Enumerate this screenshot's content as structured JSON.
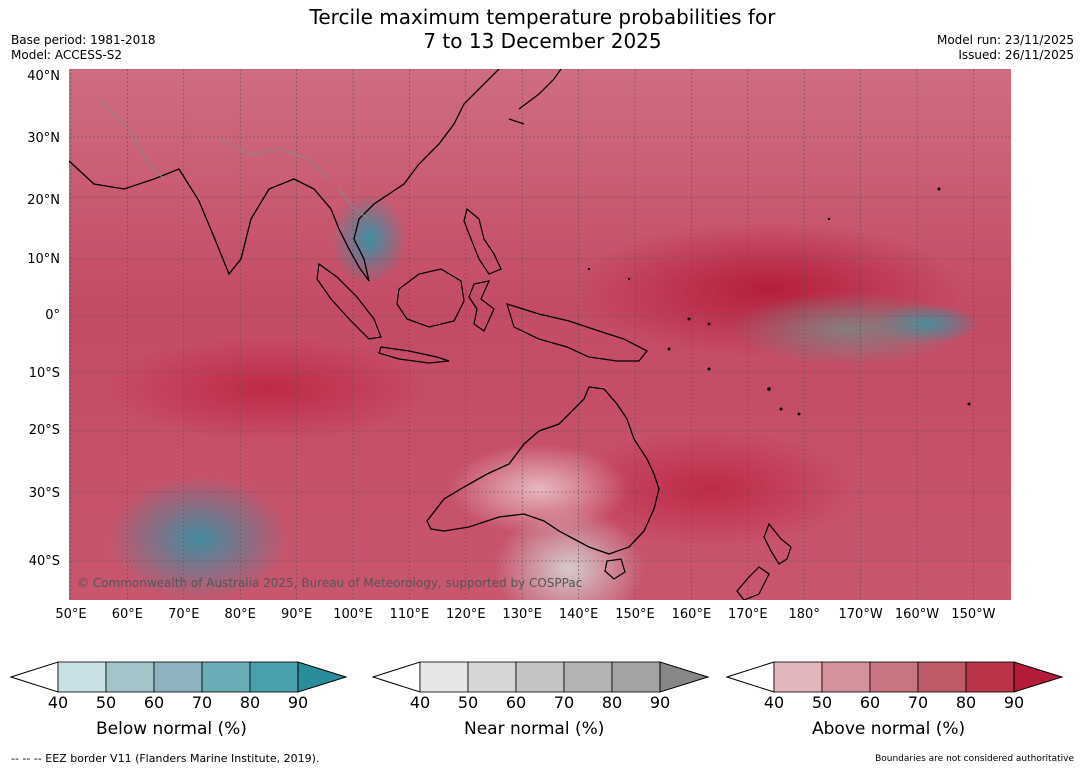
{
  "header": {
    "title_line1": "Tercile maximum temperature probabilities for",
    "title_line2": "7 to 13 December 2025",
    "base_period": "Base period: 1981-2018",
    "model": "Model: ACCESS-S2",
    "model_run": "Model run: 23/11/2025",
    "issued": "Issued: 26/11/2025"
  },
  "map": {
    "copyright": "© Commonwealth of Australia 2025, Bureau of Meteorology, supported by COSPPac",
    "lat_labels": [
      "40°N",
      "30°N",
      "20°N",
      "10°N",
      "0°",
      "10°S",
      "20°S",
      "30°S",
      "40°S"
    ],
    "lon_labels": [
      "50°E",
      "60°E",
      "70°E",
      "80°E",
      "90°E",
      "100°E",
      "110°E",
      "120°E",
      "130°E",
      "140°E",
      "150°E",
      "160°E",
      "170°E",
      "180°",
      "170°W",
      "160°W",
      "150°W"
    ]
  },
  "legends": [
    {
      "label": "Below normal (%)",
      "ticks": [
        "40",
        "50",
        "60",
        "70",
        "80",
        "90"
      ],
      "colors": [
        "#c9e1e6",
        "#a3c5c9",
        "#8db3bf",
        "#6aadb7",
        "#48a0ac",
        "#2b8c9c"
      ]
    },
    {
      "label": "Near normal (%)",
      "ticks": [
        "40",
        "50",
        "60",
        "70",
        "80",
        "90"
      ],
      "colors": [
        "#e6e6e6",
        "#d6d6d6",
        "#c4c4c4",
        "#b3b3b3",
        "#a3a3a3",
        "#878787"
      ]
    },
    {
      "label": "Above normal (%)",
      "ticks": [
        "40",
        "50",
        "60",
        "70",
        "80",
        "90"
      ],
      "colors": [
        "#e3b6bc",
        "#d4939c",
        "#c87481",
        "#bf5a69",
        "#b93349",
        "#b01c3a"
      ]
    }
  ],
  "footer": {
    "eez_note": "-- -- -- EEZ border V11 (Flanders Marine Institute, 2019).",
    "boundaries_note": "Boundaries are not considered authoritative"
  }
}
